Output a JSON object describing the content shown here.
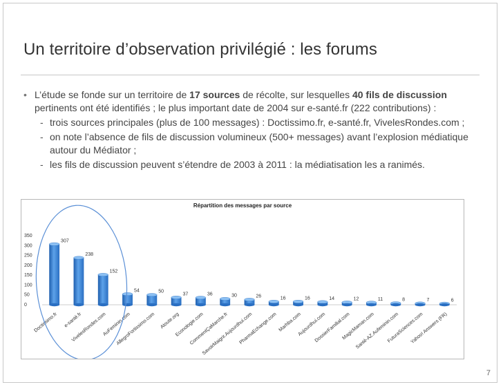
{
  "slide": {
    "title": "Un territoire d’observation privilégié : les forums",
    "page_number": "7"
  },
  "bullets": {
    "b1_part1": "L’étude se fonde sur un territoire de ",
    "b1_bold1": "17 sources",
    "b1_part2": " de récolte, sur lesquelles ",
    "b1_bold2": "40 fils de discussion",
    "b1_part3": " pertinents ont été identifiés ; le plus important date de 2004 sur e-santé.fr (222 contributions) :",
    "sub": [
      "trois sources principales (plus de 100 messages) : Doctissimo.fr, e-santé.fr, VivelesRondes.com ;",
      "on note l’absence de fils de discussion volumineux (500+ messages) avant l’explosion médiatique autour du Médiator ;",
      "les fils de discussion peuvent s’étendre de 2003 à 2011 : la médiatisation les a ranimés."
    ]
  },
  "chart_data": {
    "type": "bar",
    "title": "Répartition des messages par source",
    "xlabel": "",
    "ylabel": "",
    "ylim": [
      0,
      350
    ],
    "yticks": [
      0,
      50,
      100,
      150,
      200,
      250,
      300,
      350
    ],
    "grid": false,
    "legend": "none",
    "categories": [
      "Doctissimo.fr",
      "e-santé.fr",
      "VivelesRondes.com",
      "AuFeminin.com",
      "AllegroFortissimo.com",
      "Atoute.org",
      "Econologie.com",
      "CommentÇaMarche.fr",
      "SavoirMaigrir.Aujourdhui.com",
      "PharmaEchange.com",
      "Marhba.com",
      "Aujourdhui.com",
      "DossierFamilial.com",
      "MagicMaman.com",
      "Santé-AZ.Aufeminin.com",
      "FuturaSciences.com",
      "Yahoo! Answers (FR)"
    ],
    "values": [
      307,
      238,
      152,
      54,
      50,
      37,
      36,
      30,
      26,
      16,
      16,
      14,
      12,
      11,
      8,
      7,
      6
    ],
    "bar_color": "#3a7fd0",
    "annotation": "ellipse-around-top-3"
  }
}
